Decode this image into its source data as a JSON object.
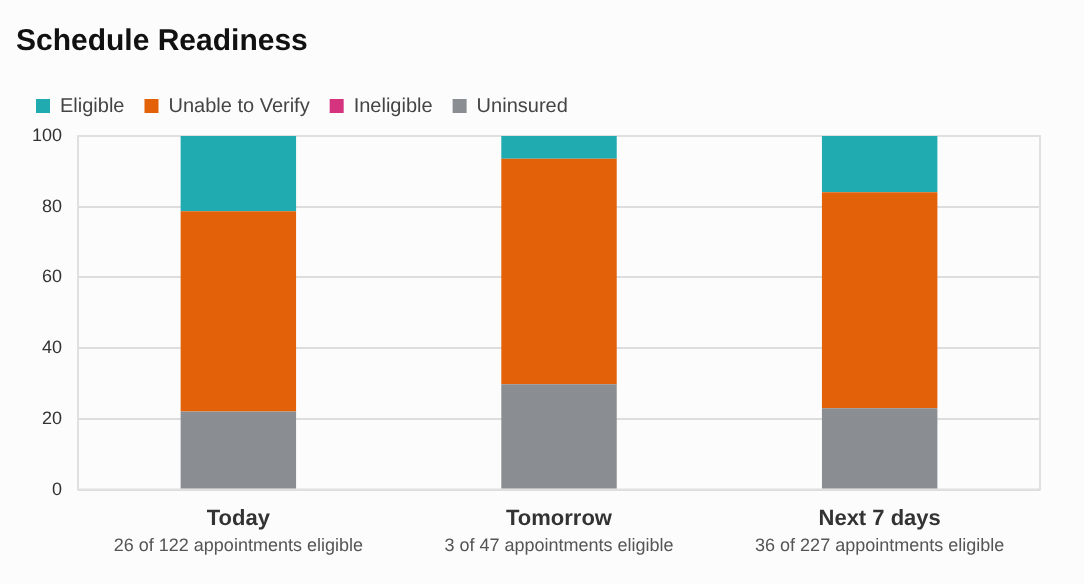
{
  "chart_data": {
    "type": "bar",
    "title": "Schedule Readiness",
    "categories": [
      "Today",
      "Tomorrow",
      "Next 7 days"
    ],
    "stacked": true,
    "series": [
      {
        "name": "Uninsured",
        "color": "#8a8d91",
        "values": [
          22.1,
          29.8,
          23.0
        ]
      },
      {
        "name": "Ineligible",
        "color": "#d6337f",
        "values": [
          0,
          0,
          0
        ]
      },
      {
        "name": "Unable to Verify",
        "color": "#e36209",
        "values": [
          56.6,
          63.8,
          61.1
        ]
      },
      {
        "name": "Eligible",
        "color": "#20abb0",
        "values": [
          21.3,
          6.4,
          15.9
        ]
      }
    ],
    "ylim": [
      0,
      100
    ],
    "yticks": [
      0,
      20,
      40,
      60,
      80,
      100
    ],
    "grid": "y",
    "legend": "top left",
    "annotations": [
      "26 of 122 appointments eligible",
      "3 of 47 appointments eligible",
      "36 of 227 appointments eligible"
    ]
  }
}
